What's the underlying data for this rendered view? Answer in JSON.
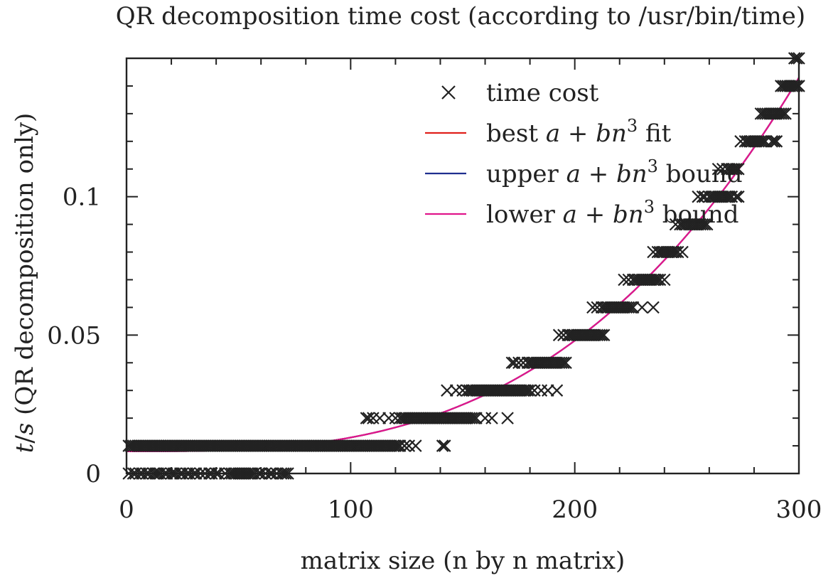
{
  "chart_data": {
    "type": "scatter",
    "title": "QR decomposition time cost (according to /usr/bin/time)",
    "xlabel": "matrix size (n by n matrix)",
    "ylabel": "t/s (QR decomposition only)",
    "xlim": [
      0,
      300
    ],
    "ylim": [
      0,
      0.15
    ],
    "x_ticks": [
      0,
      100,
      200,
      300
    ],
    "x_tick_labels": [
      "0",
      "100",
      "200",
      "300"
    ],
    "y_ticks": [
      0,
      0.05,
      0.1
    ],
    "y_tick_labels": [
      "0",
      "0.05",
      "0.1"
    ],
    "x_minor_step": 20,
    "y_minor_step": 0.01,
    "grid": false,
    "legend": {
      "position": "top-right",
      "entries": [
        {
          "name": "time cost",
          "marker": "x",
          "color": "#222222"
        },
        {
          "name": "best a+bn³ fit",
          "prefix": "best",
          "math": "a + bn",
          "sup": "3",
          "suffix": "fit",
          "color": "#e0201b"
        },
        {
          "name": "upper a+bn³ bound",
          "prefix": "upper",
          "math": "a + bn",
          "sup": "3",
          "suffix": "bound",
          "color": "#1f2f8f"
        },
        {
          "name": "lower a+bn³ bound",
          "prefix": "lower",
          "math": "a + bn",
          "sup": "3",
          "suffix": "bound",
          "color": "#e0168c"
        }
      ]
    },
    "fit": {
      "a": 0.008,
      "b": 5e-09
    },
    "series": [
      {
        "name": "time cost",
        "style": "x",
        "groups": [
          {
            "y": 0.0,
            "x": [
              1,
              3,
              4,
              6,
              7,
              9,
              10,
              12,
              13,
              14,
              15,
              17,
              18,
              20,
              21,
              22,
              24,
              25,
              27,
              28,
              30,
              31,
              33,
              35,
              37,
              38,
              40,
              41,
              44,
              46,
              47,
              48,
              49,
              50,
              51,
              52,
              53,
              54,
              55,
              56,
              57,
              59,
              60,
              62,
              64,
              65,
              67,
              69,
              70,
              71,
              72
            ]
          },
          {
            "y": 0.01,
            "x": [
              1,
              2,
              3,
              4,
              5,
              6,
              7,
              8,
              9,
              10,
              11,
              12,
              13,
              14,
              15,
              16,
              17,
              18,
              19,
              20,
              21,
              22,
              23,
              24,
              25,
              26,
              27,
              28,
              29,
              30,
              31,
              32,
              33,
              34,
              35,
              36,
              37,
              38,
              39,
              40,
              41,
              42,
              43,
              44,
              45,
              46,
              47,
              48,
              49,
              50,
              51,
              52,
              53,
              54,
              55,
              56,
              57,
              58,
              59,
              60,
              61,
              62,
              63,
              64,
              65,
              66,
              67,
              68,
              69,
              70,
              71,
              72,
              73,
              74,
              75,
              76,
              77,
              78,
              79,
              80,
              81,
              82,
              83,
              84,
              85,
              86,
              87,
              88,
              89,
              90,
              91,
              92,
              93,
              94,
              95,
              96,
              97,
              98,
              99,
              100,
              101,
              102,
              103,
              104,
              105,
              106,
              107,
              108,
              109,
              110,
              111,
              112,
              113,
              114,
              115,
              116,
              117,
              118,
              119,
              120,
              121,
              122,
              124,
              126,
              129,
              141,
              142
            ]
          },
          {
            "y": 0.02,
            "x": [
              107,
              108,
              110,
              113,
              117,
              120,
              122,
              123,
              124,
              125,
              126,
              127,
              128,
              129,
              130,
              131,
              132,
              133,
              134,
              135,
              136,
              137,
              138,
              139,
              140,
              141,
              142,
              143,
              144,
              145,
              146,
              147,
              148,
              149,
              150,
              151,
              152,
              153,
              154,
              155,
              156,
              160,
              163,
              170
            ]
          },
          {
            "y": 0.03,
            "x": [
              143,
              147,
              150,
              152,
              153,
              154,
              155,
              156,
              157,
              158,
              159,
              160,
              161,
              162,
              163,
              164,
              165,
              166,
              167,
              168,
              169,
              170,
              171,
              172,
              173,
              174,
              175,
              176,
              177,
              178,
              179,
              180,
              182,
              185,
              188,
              192
            ]
          },
          {
            "y": 0.04,
            "x": [
              172,
              173,
              175,
              177,
              179,
              180,
              181,
              182,
              183,
              184,
              185,
              186,
              187,
              188,
              189,
              190,
              191,
              192,
              193,
              194,
              195,
              196
            ]
          },
          {
            "y": 0.05,
            "x": [
              193,
              195,
              197,
              198,
              199,
              200,
              201,
              202,
              203,
              204,
              205,
              206,
              207,
              208,
              209,
              210,
              211,
              212,
              213
            ]
          },
          {
            "y": 0.06,
            "x": [
              208,
              210,
              212,
              213,
              214,
              215,
              216,
              217,
              218,
              219,
              220,
              221,
              222,
              223,
              224,
              225,
              226,
              230,
              235
            ]
          },
          {
            "y": 0.07,
            "x": [
              222,
              224,
              226,
              227,
              228,
              229,
              230,
              231,
              232,
              233,
              234,
              235,
              236,
              237,
              238,
              240
            ]
          },
          {
            "y": 0.08,
            "x": [
              235,
              237,
              238,
              239,
              240,
              241,
              242,
              243,
              244,
              245,
              246,
              248
            ]
          },
          {
            "y": 0.09,
            "x": [
              245,
              247,
              248,
              249,
              250,
              251,
              252,
              253,
              254,
              255,
              256,
              257,
              258,
              259
            ]
          },
          {
            "y": 0.1,
            "x": [
              255,
              257,
              258,
              260,
              261,
              262,
              263,
              264,
              265,
              266,
              267,
              268,
              269,
              270,
              272,
              273
            ]
          },
          {
            "y": 0.11,
            "x": [
              264,
              266,
              268,
              269,
              270,
              271,
              272,
              273
            ]
          },
          {
            "y": 0.12,
            "x": [
              274,
              276,
              277,
              278,
              279,
              280,
              281,
              282,
              283,
              284,
              285,
              288,
              289,
              290
            ]
          },
          {
            "y": 0.13,
            "x": [
              283,
              284,
              285,
              286,
              287,
              288,
              289,
              290,
              291,
              292,
              293,
              294
            ]
          },
          {
            "y": 0.14,
            "x": [
              292,
              293,
              294,
              295,
              296,
              297,
              298,
              299,
              300
            ]
          },
          {
            "y": 0.15,
            "x": [
              298,
              299,
              300
            ]
          }
        ]
      }
    ]
  }
}
